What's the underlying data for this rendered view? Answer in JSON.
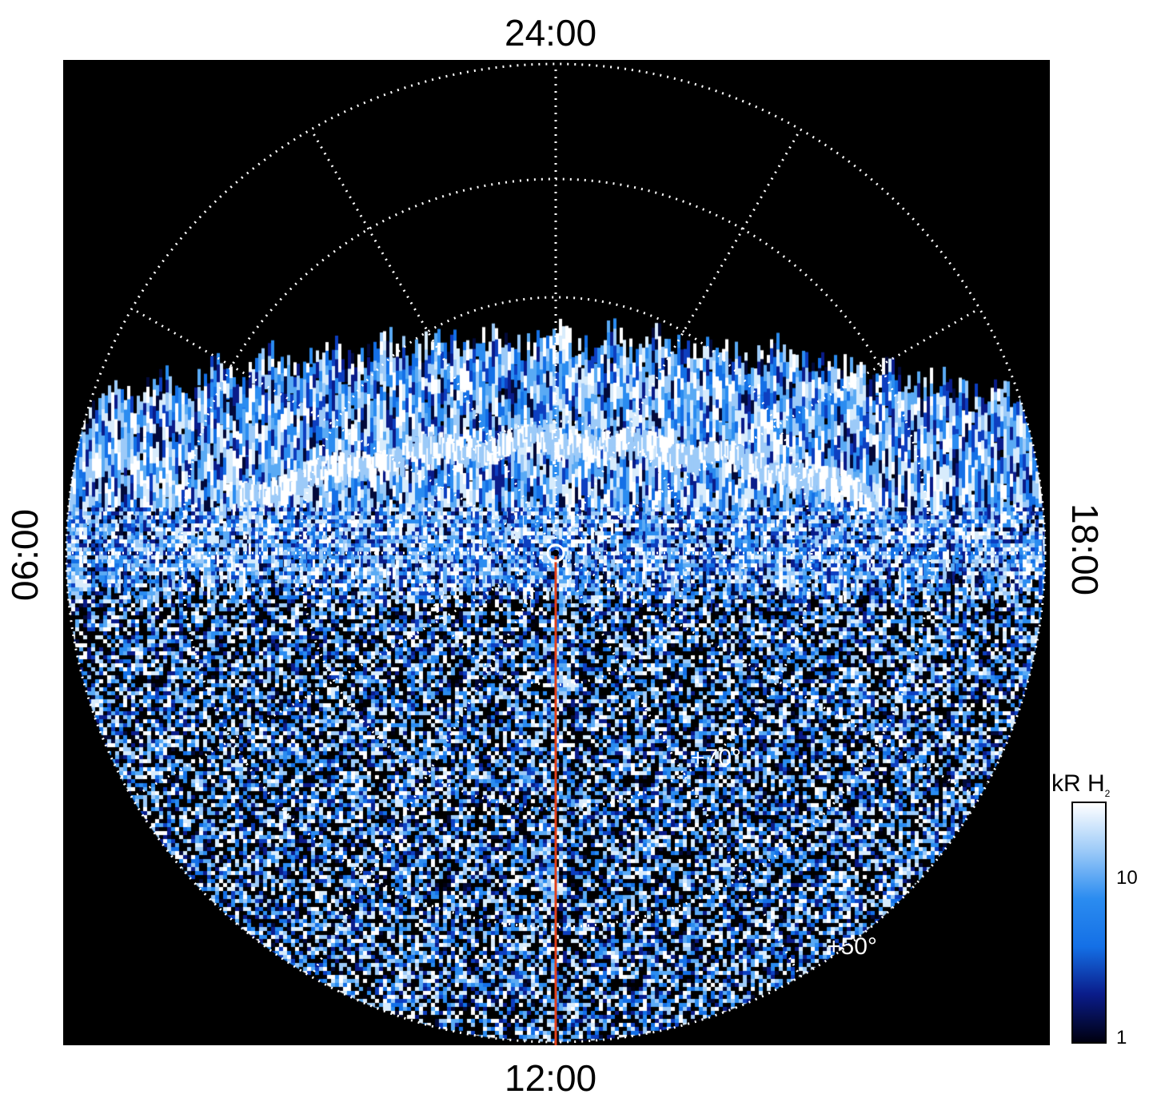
{
  "time_labels": {
    "top": "24:00",
    "bottom": "12:00",
    "left": "06:00",
    "right": "18:00"
  },
  "latitude_labels": {
    "inner": "+70°",
    "outer": "+50°"
  },
  "colorbar": {
    "title_main": "kR H",
    "title_sub": "2",
    "tick_high": "10",
    "tick_low": "1",
    "scale": "log",
    "colors": [
      "#000010",
      "#0a1c8a",
      "#1470e6",
      "#2b8cf0",
      "#9ccaf8",
      "#ffffff"
    ]
  },
  "colors": {
    "background": "#000000",
    "grid": "#ffffff",
    "meridian_line": "#e0401a"
  }
}
